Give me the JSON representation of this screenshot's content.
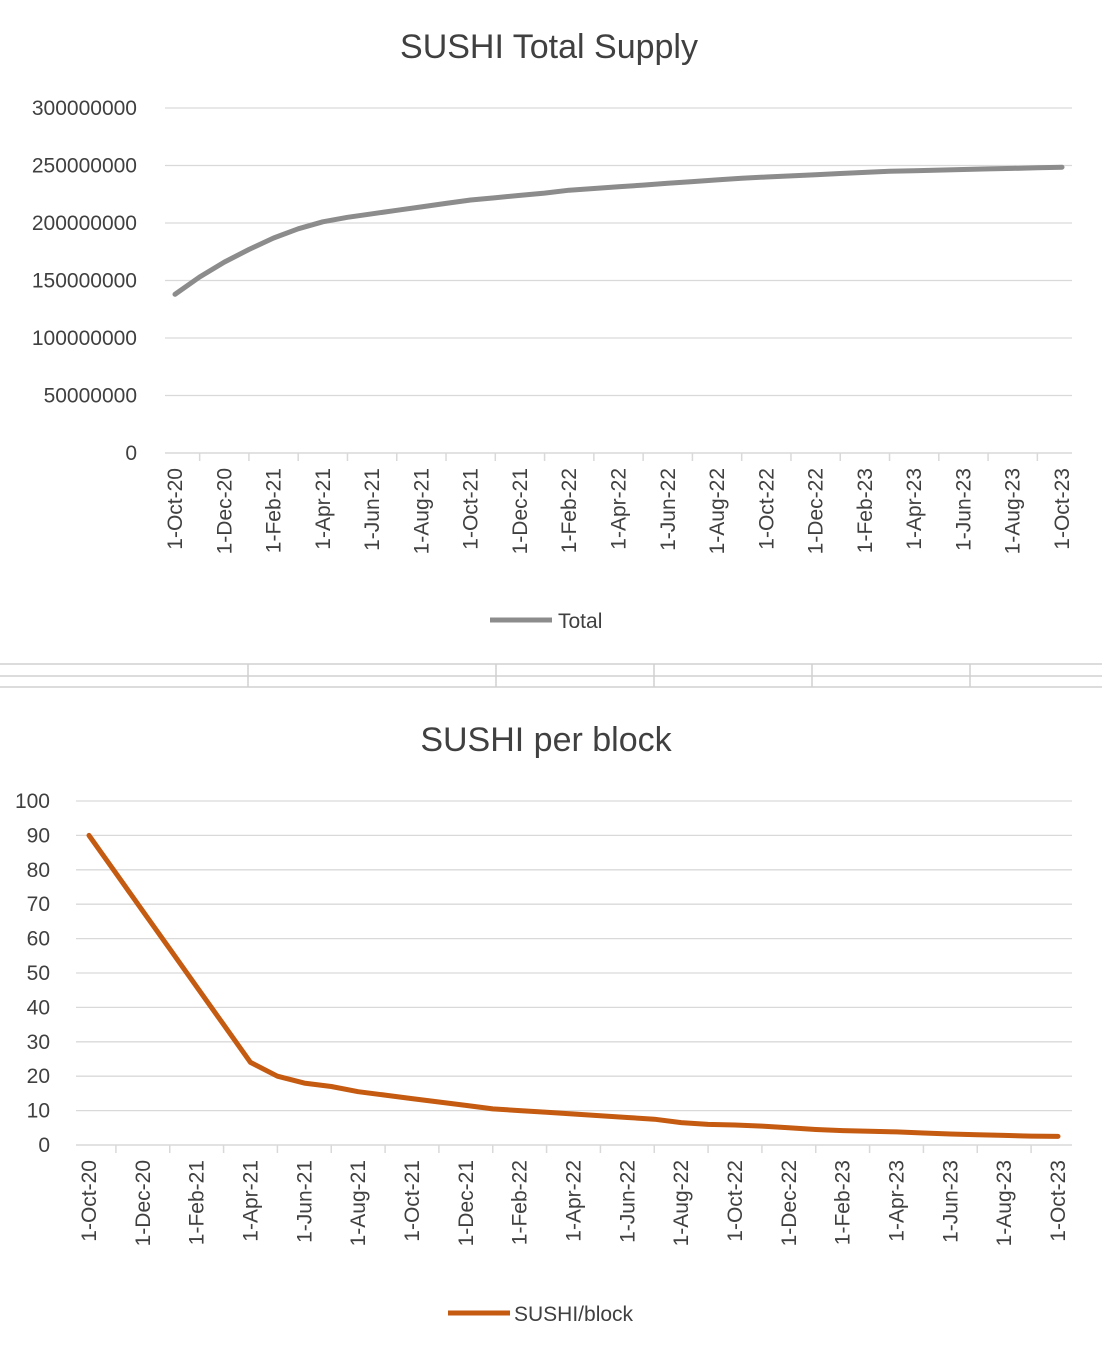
{
  "chart_data": [
    {
      "type": "line",
      "title": "SUSHI Total Supply",
      "xlabel": "",
      "ylabel": "",
      "ylim": [
        0,
        300000000
      ],
      "yticks": [
        "0",
        "50000000",
        "100000000",
        "150000000",
        "200000000",
        "250000000",
        "300000000"
      ],
      "categories": [
        "1-Oct-20",
        "1-Dec-20",
        "1-Feb-21",
        "1-Apr-21",
        "1-Jun-21",
        "1-Aug-21",
        "1-Oct-21",
        "1-Dec-21",
        "1-Feb-22",
        "1-Apr-22",
        "1-Jun-22",
        "1-Aug-22",
        "1-Oct-22",
        "1-Dec-22",
        "1-Feb-23",
        "1-Apr-23",
        "1-Jun-23",
        "1-Aug-23",
        "1-Oct-23"
      ],
      "grid": true,
      "legend_position": "bottom",
      "series": [
        {
          "name": "Total",
          "color": "#8c8c8c",
          "x": [
            "1-Oct-20",
            "1-Nov-20",
            "1-Dec-20",
            "1-Jan-21",
            "1-Feb-21",
            "1-Mar-21",
            "1-Apr-21",
            "1-May-21",
            "1-Jun-21",
            "1-Jul-21",
            "1-Aug-21",
            "1-Sep-21",
            "1-Oct-21",
            "1-Nov-21",
            "1-Dec-21",
            "1-Jan-22",
            "1-Feb-22",
            "1-Mar-22",
            "1-Apr-22",
            "1-May-22",
            "1-Jun-22",
            "1-Jul-22",
            "1-Aug-22",
            "1-Sep-22",
            "1-Oct-22",
            "1-Nov-22",
            "1-Dec-22",
            "1-Jan-23",
            "1-Feb-23",
            "1-Mar-23",
            "1-Apr-23",
            "1-May-23",
            "1-Jun-23",
            "1-Jul-23",
            "1-Aug-23",
            "1-Sep-23",
            "1-Oct-23"
          ],
          "values": [
            138000000,
            153000000,
            166000000,
            177000000,
            187000000,
            195000000,
            201000000,
            205000000,
            208000000,
            211000000,
            214000000,
            217000000,
            220000000,
            222000000,
            224000000,
            226000000,
            228500000,
            230000000,
            231500000,
            233000000,
            234500000,
            236000000,
            237500000,
            239000000,
            240000000,
            241000000,
            242000000,
            243000000,
            244000000,
            245000000,
            245500000,
            246000000,
            246500000,
            247000000,
            247500000,
            248000000,
            248500000
          ]
        }
      ]
    },
    {
      "type": "line",
      "title": "SUSHI per block",
      "xlabel": "",
      "ylabel": "",
      "ylim": [
        0,
        100
      ],
      "yticks": [
        "0",
        "10",
        "20",
        "30",
        "40",
        "50",
        "60",
        "70",
        "80",
        "90",
        "100"
      ],
      "categories": [
        "1-Oct-20",
        "1-Dec-20",
        "1-Feb-21",
        "1-Apr-21",
        "1-Jun-21",
        "1-Aug-21",
        "1-Oct-21",
        "1-Dec-21",
        "1-Feb-22",
        "1-Apr-22",
        "1-Jun-22",
        "1-Aug-22",
        "1-Oct-22",
        "1-Dec-22",
        "1-Feb-23",
        "1-Apr-23",
        "1-Jun-23",
        "1-Aug-23",
        "1-Oct-23"
      ],
      "grid": true,
      "legend_position": "bottom",
      "series": [
        {
          "name": "SUSHI/block",
          "color": "#c55a11",
          "x": [
            "1-Oct-20",
            "1-Nov-20",
            "1-Dec-20",
            "1-Jan-21",
            "1-Feb-21",
            "1-Mar-21",
            "1-Apr-21",
            "1-May-21",
            "1-Jun-21",
            "1-Jul-21",
            "1-Aug-21",
            "1-Sep-21",
            "1-Oct-21",
            "1-Nov-21",
            "1-Dec-21",
            "1-Jan-22",
            "1-Feb-22",
            "1-Mar-22",
            "1-Apr-22",
            "1-May-22",
            "1-Jun-22",
            "1-Jul-22",
            "1-Aug-22",
            "1-Sep-22",
            "1-Oct-22",
            "1-Nov-22",
            "1-Dec-22",
            "1-Jan-23",
            "1-Feb-23",
            "1-Mar-23",
            "1-Apr-23",
            "1-May-23",
            "1-Jun-23",
            "1-Jul-23",
            "1-Aug-23",
            "1-Sep-23",
            "1-Oct-23"
          ],
          "values": [
            90,
            79,
            68,
            57,
            46,
            35,
            24,
            20,
            18,
            17,
            15.5,
            14.5,
            13.5,
            12.5,
            11.5,
            10.5,
            10,
            9.5,
            9,
            8.5,
            8,
            7.5,
            6.5,
            6,
            5.8,
            5.5,
            5,
            4.5,
            4.2,
            4,
            3.8,
            3.5,
            3.2,
            3,
            2.8,
            2.6,
            2.5
          ]
        }
      ]
    }
  ]
}
